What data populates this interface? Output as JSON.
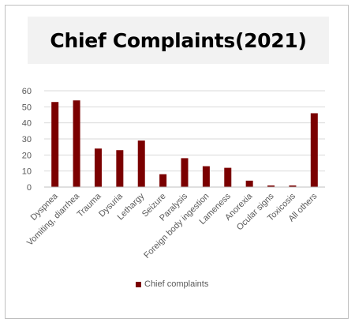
{
  "chart_data": {
    "type": "bar",
    "title": "Chief Complaints(2021)",
    "categories": [
      "Dyspnea",
      "Vomiting, diarrhea",
      "Trauma",
      "Dysuria",
      "Lethargy",
      "Seizure",
      "Paralysis",
      "Foreign body ingestion",
      "Lameness",
      "Anorexia",
      "Ocular signs",
      "Toxicosis",
      "All others"
    ],
    "series": [
      {
        "name": "Chief complaints",
        "color": "#7b0000",
        "values": [
          53,
          54,
          24,
          23,
          29,
          8,
          18,
          13,
          12,
          4,
          1,
          1,
          46
        ]
      }
    ],
    "ylim": [
      0,
      60
    ],
    "yticks": [
      0,
      10,
      20,
      30,
      40,
      50,
      60
    ],
    "grid": true,
    "legend": "bottom"
  }
}
